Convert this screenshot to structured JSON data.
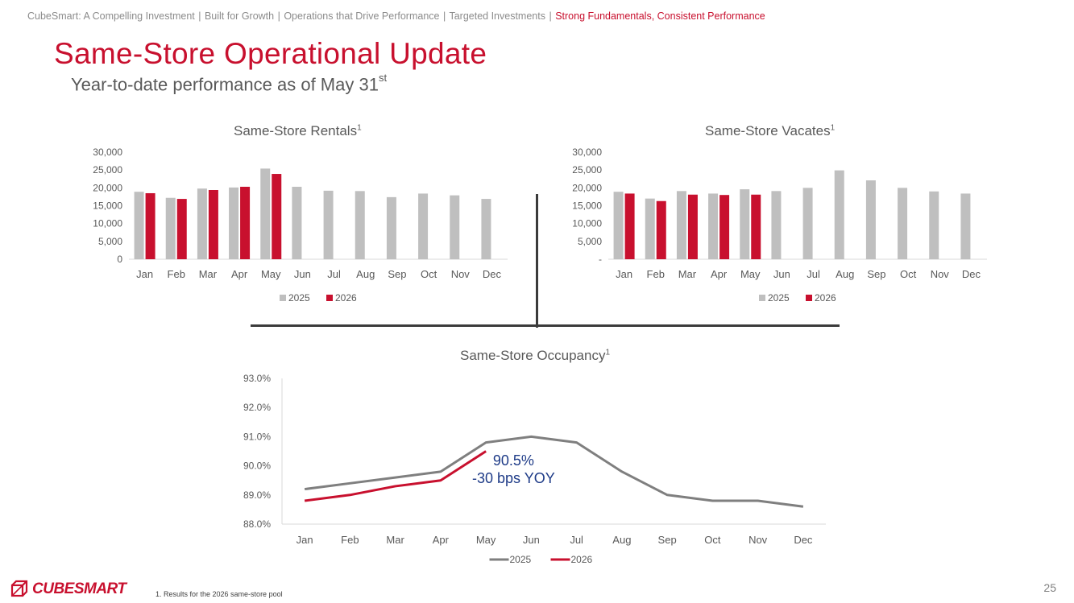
{
  "breadcrumb": {
    "items": [
      "CubeSmart: A Compelling Investment",
      "Built for Growth",
      "Operations that Drive Performance",
      "Targeted Investments",
      "Strong Fundamentals, Consistent Performance"
    ],
    "separator": "|",
    "active_index": 4
  },
  "title": "Same-Store Operational Update",
  "subtitle": {
    "text": "Year-to-date performance as of May 31",
    "sup": "st"
  },
  "colors": {
    "brand": "#c8102e",
    "series_2025": "#bfbfbf",
    "series_2026": "#c8102e",
    "line_2025": "#7f7f7f",
    "annotation": "#1f3c88"
  },
  "chart_data": [
    {
      "type": "bar",
      "title": "Same-Store Rentals",
      "title_sup": "1",
      "categories": [
        "Jan",
        "Feb",
        "Mar",
        "Apr",
        "May",
        "Jun",
        "Jul",
        "Aug",
        "Sep",
        "Oct",
        "Nov",
        "Dec"
      ],
      "series": [
        {
          "name": "2025",
          "values": [
            18900,
            17200,
            19800,
            20100,
            25400,
            20300,
            19200,
            19100,
            17400,
            18400,
            17900,
            16900
          ]
        },
        {
          "name": "2026",
          "values": [
            18500,
            16900,
            19400,
            20300,
            23900,
            null,
            null,
            null,
            null,
            null,
            null,
            null
          ]
        }
      ],
      "ylim": [
        0,
        30000
      ],
      "yticks": [
        0,
        5000,
        10000,
        15000,
        20000,
        25000,
        30000
      ],
      "ytick_labels": [
        "0",
        "5,000",
        "10,000",
        "15,000",
        "20,000",
        "25,000",
        "30,000"
      ],
      "legend_position": "bottom"
    },
    {
      "type": "bar",
      "title": "Same-Store Vacates",
      "title_sup": "1",
      "categories": [
        "Jan",
        "Feb",
        "Mar",
        "Apr",
        "May",
        "Jun",
        "Jul",
        "Aug",
        "Sep",
        "Oct",
        "Nov",
        "Dec"
      ],
      "series": [
        {
          "name": "2025",
          "values": [
            18900,
            17000,
            19100,
            18400,
            19600,
            19100,
            20000,
            24900,
            22100,
            20000,
            19000,
            18400
          ]
        },
        {
          "name": "2026",
          "values": [
            18400,
            16300,
            18100,
            18000,
            18100,
            null,
            null,
            null,
            null,
            null,
            null,
            null
          ]
        }
      ],
      "ylim": [
        0,
        30000
      ],
      "yticks": [
        0,
        5000,
        10000,
        15000,
        20000,
        25000,
        30000
      ],
      "ytick_labels": [
        "-",
        "5,000",
        "10,000",
        "15,000",
        "20,000",
        "25,000",
        "30,000"
      ],
      "legend_position": "bottom"
    },
    {
      "type": "line",
      "title": "Same-Store Occupancy",
      "title_sup": "1",
      "categories": [
        "Jan",
        "Feb",
        "Mar",
        "Apr",
        "May",
        "Jun",
        "Jul",
        "Aug",
        "Sep",
        "Oct",
        "Nov",
        "Dec"
      ],
      "series": [
        {
          "name": "2025",
          "values": [
            89.2,
            89.4,
            89.6,
            89.8,
            90.8,
            91.0,
            90.8,
            89.8,
            89.0,
            88.8,
            88.8,
            88.6
          ]
        },
        {
          "name": "2026",
          "values": [
            88.8,
            89.0,
            89.3,
            89.5,
            90.5,
            null,
            null,
            null,
            null,
            null,
            null,
            null
          ]
        }
      ],
      "ylim": [
        88.0,
        93.0
      ],
      "yticks": [
        88.0,
        89.0,
        90.0,
        91.0,
        92.0,
        93.0
      ],
      "ytick_labels": [
        "88.0%",
        "89.0%",
        "90.0%",
        "91.0%",
        "92.0%",
        "93.0%"
      ],
      "annotation": [
        "90.5%",
        "-30 bps YOY"
      ],
      "legend_position": "bottom"
    }
  ],
  "footnote": "1.    Results for the 2026 same-store pool",
  "page_number": "25",
  "logo": {
    "text": "CUBESMART",
    "icon": "cube-logo-icon"
  }
}
